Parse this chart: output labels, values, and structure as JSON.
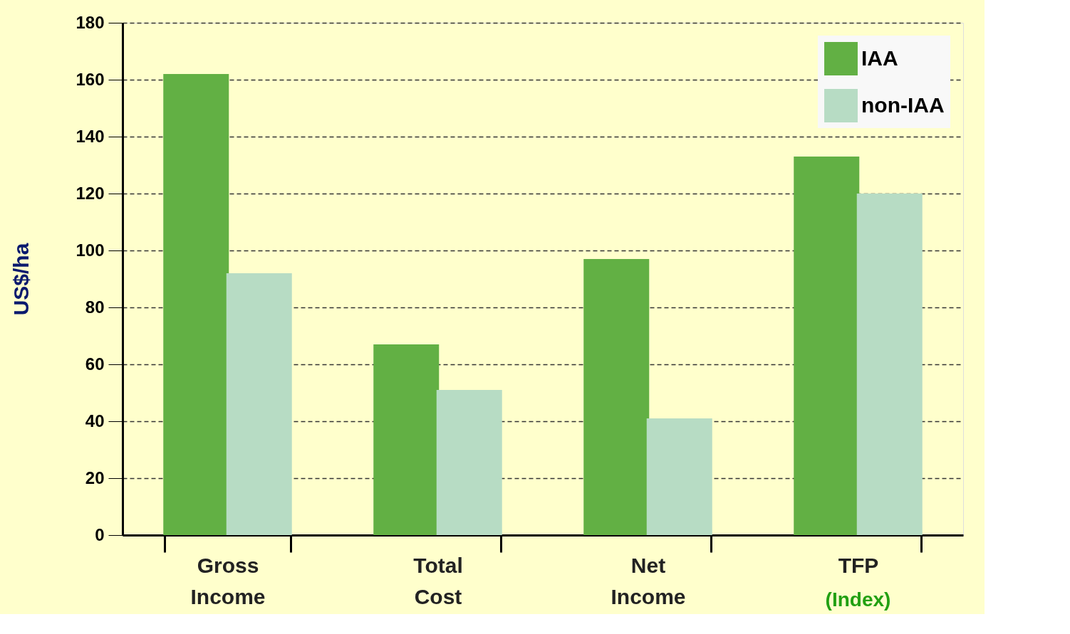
{
  "chart_data": {
    "type": "bar",
    "ylabel": "US$/ha",
    "categories": [
      "Gross Income",
      "Total Cost",
      "Net Income",
      "TFP"
    ],
    "series": [
      {
        "name": "IAA",
        "color": "#62b044",
        "values": [
          162,
          67,
          97,
          133
        ]
      },
      {
        "name": "non-IAA",
        "color": "#b7dcc4",
        "values": [
          92,
          51,
          41,
          120
        ]
      }
    ],
    "ylim": [
      0,
      180
    ],
    "yticks": [
      0,
      20,
      40,
      60,
      80,
      100,
      120,
      140,
      160,
      180
    ],
    "grid": "y",
    "legend": "top right",
    "annotations": [
      "(Index)"
    ]
  }
}
